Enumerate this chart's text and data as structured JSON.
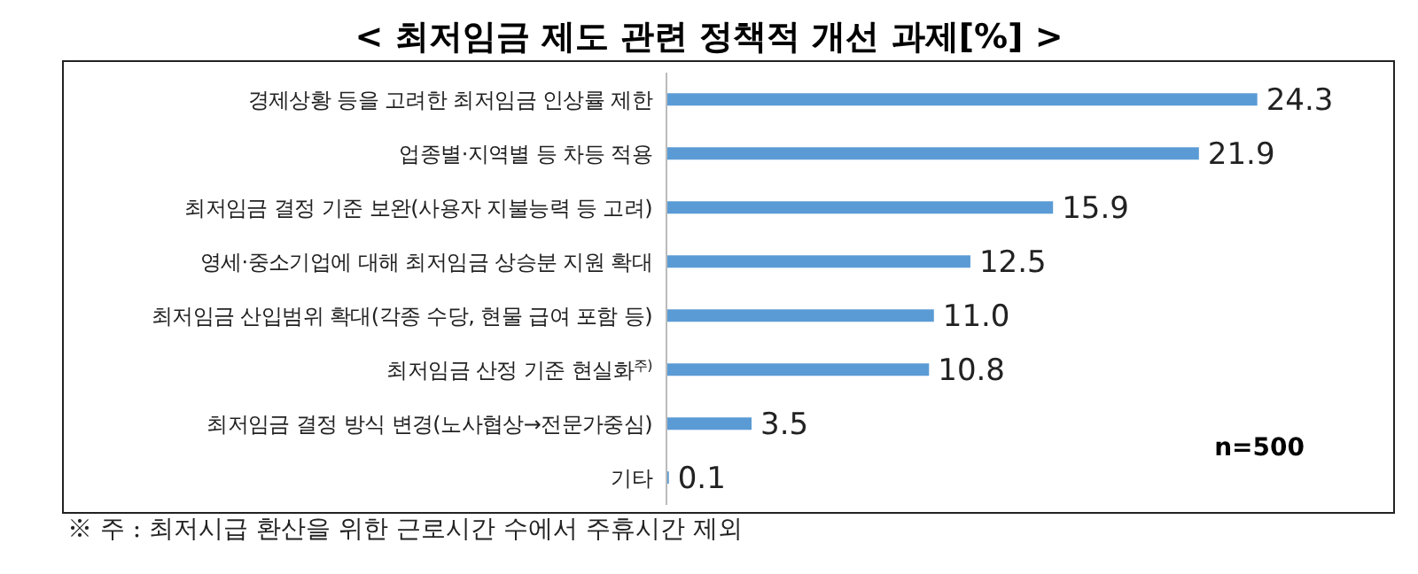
{
  "chart_data": {
    "type": "bar",
    "orientation": "horizontal",
    "title": "< 최저임금 제도 관련 정책적 개선 과제[%] >",
    "categories": [
      "경제상황 등을 고려한 최저임금 인상률 제한",
      "업종별·지역별 등 차등 적용",
      "최저임금 결정 기준 보완(사용자 지불능력 등 고려)",
      "영세·중소기업에 대해 최저임금 상승분 지원 확대",
      "최저임금 산입범위 확대(각종 수당, 현물 급여 포함 등)",
      "최저임금 산정 기준 현실화$^{주)}$",
      "최저임금 결정 방식 변경(노사협상→전문가중심)",
      "기타"
    ],
    "values": [
      24.3,
      21.9,
      15.9,
      12.5,
      11.0,
      10.8,
      3.5,
      0.1
    ],
    "value_labels": [
      "24.3",
      "21.9",
      "15.9",
      "12.5",
      "11.0",
      "10.8",
      "3.5",
      "0.1"
    ],
    "color": "#5b9bd5",
    "grid": false,
    "legend": false,
    "annotations": [
      "n=500",
      "※ 주 : 최저시급 환산을 위한 근로시간 수에서 주휴시간 제외"
    ]
  }
}
